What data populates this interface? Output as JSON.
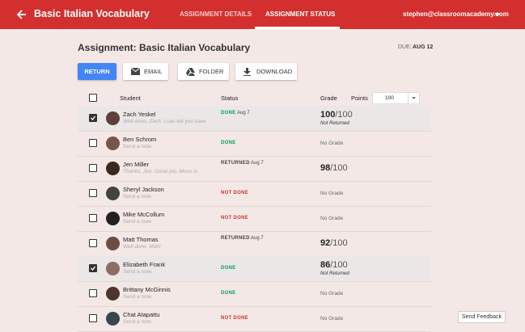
{
  "header": {
    "title": "Basic Italian Vocabulary",
    "tabs": [
      {
        "label": "ASSIGNMENT DETAILS",
        "active": false
      },
      {
        "label": "ASSIGNMENT STATUS",
        "active": true
      }
    ],
    "user": "stephen@classroomacademy.com"
  },
  "assignment": {
    "title": "Assignment: Basic Italian Vocabulary",
    "due_label": "DUE:",
    "due_date": "AUG 12"
  },
  "toolbar": [
    "RETURN",
    "EMAIL",
    "FOLDER",
    "DOWNLOAD"
  ],
  "table": {
    "columns": {
      "student": "Student",
      "status": "Status",
      "grade": "Grade",
      "points": "Points"
    },
    "points_value": "100",
    "rows": [
      {
        "checked": true,
        "name": "Zach Yeskel",
        "note": "Well done, Zach. I can tell you have",
        "status": "DONE",
        "status_color": "#0f9d58",
        "date": "Aug 7",
        "score": "100",
        "out_of": "/100",
        "grade_note": "Not Returned"
      },
      {
        "checked": false,
        "name": "Ben Schrom",
        "note": "Send a note",
        "status": "DONE",
        "status_color": "#0f9d58",
        "grade": "No Grade"
      },
      {
        "checked": false,
        "name": "Jen Miller",
        "note": "Thanks, Jen. Great job. Moon is",
        "status": "RETURNED",
        "status_color": "#444444",
        "date": "Aug 7",
        "score": "98",
        "out_of": "/100"
      },
      {
        "checked": false,
        "name": "Sheryl Jackson",
        "note": "Send a note",
        "status": "NOT DONE",
        "status_color": "#c53929",
        "grade": "No Grade"
      },
      {
        "checked": false,
        "name": "Mike McCollum",
        "note": "Send a note",
        "status": "NOT DONE",
        "status_color": "#c53929",
        "grade": "No Grade"
      },
      {
        "checked": false,
        "name": "Matt Thomas",
        "note": "Well done, Matt!",
        "status": "RETURNED",
        "status_color": "#444444",
        "date": "Aug 7",
        "score": "92",
        "out_of": "/100"
      },
      {
        "checked": true,
        "name": "Elizabeth Frank",
        "note": "Send a note",
        "status": "DONE",
        "status_color": "#0f9d58",
        "score": "86",
        "out_of": "/100",
        "grade_note": "Not Returned"
      },
      {
        "checked": false,
        "name": "Brittany McGinnis",
        "note": "Send a note",
        "status": "DONE",
        "status_color": "#0f9d58",
        "grade": "No Grade"
      },
      {
        "checked": false,
        "name": "Chat Atapattu",
        "note": "Send a note",
        "status": "NOT DONE",
        "status_color": "#c53929",
        "grade": "No Grade"
      }
    ]
  },
  "feedback": "Send Feedback"
}
